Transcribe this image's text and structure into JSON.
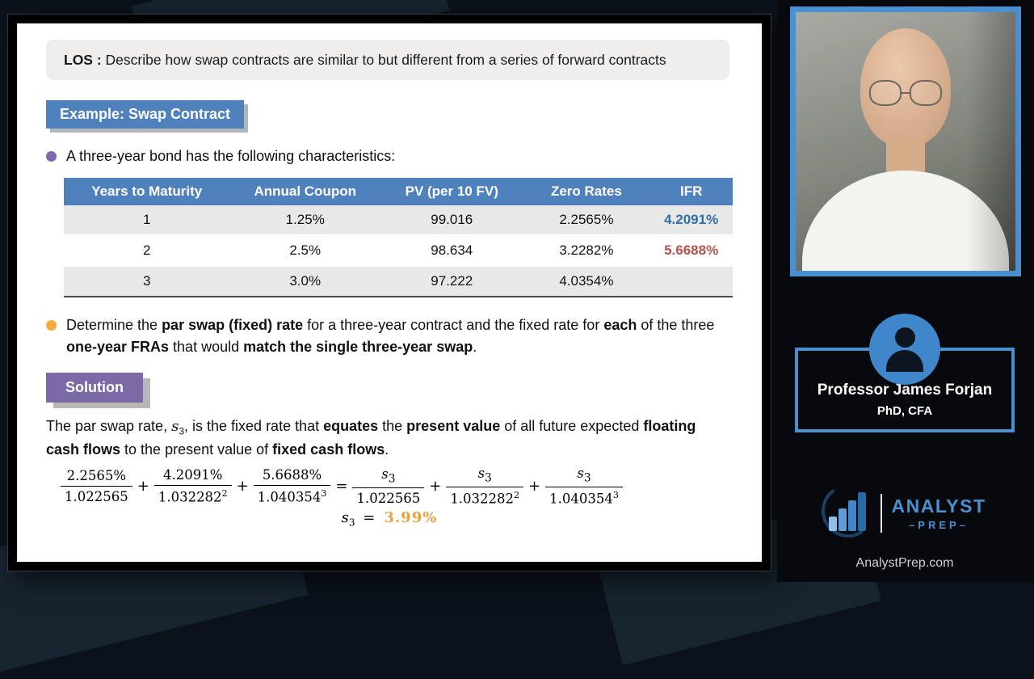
{
  "los": {
    "segments": [
      {
        "t": "LOS : ",
        "b": true
      },
      {
        "t": "Describe how swap contracts are similar to but different from a series of forward contracts"
      }
    ]
  },
  "example_badge": "Example: Swap Contract",
  "bullet1": "A three-year bond has the following characteristics:",
  "table": {
    "headers": [
      "Years to Maturity",
      "Annual Coupon",
      "PV (per 10 FV)",
      "Zero Rates",
      "IFR"
    ],
    "rows": [
      {
        "cells": [
          "1",
          "1.25%",
          "99.016",
          "2.2565%",
          "4.2091%"
        ],
        "ifr_class": "blue"
      },
      {
        "cells": [
          "2",
          "2.5%",
          "98.634",
          "3.2282%",
          "5.6688%"
        ],
        "ifr_class": "red"
      },
      {
        "cells": [
          "3",
          "3.0%",
          "97.222",
          "4.0354%",
          ""
        ],
        "ifr_class": ""
      }
    ]
  },
  "bullet2": {
    "segments": [
      {
        "t": "Determine the "
      },
      {
        "t": "par swap (fixed) rate",
        "b": true
      },
      {
        "t": " for a three-year contract and the fixed rate for "
      },
      {
        "t": "each",
        "b": true
      },
      {
        "t": " of the three "
      },
      {
        "t": "one-year FRAs",
        "b": true
      },
      {
        "t": " that would "
      },
      {
        "t": "match the single three-year swap",
        "b": true
      },
      {
        "t": "."
      }
    ]
  },
  "solution_badge": "Solution",
  "solution_text": {
    "segments": [
      {
        "t": "The par swap rate, "
      },
      {
        "t": "s",
        "i": true
      },
      {
        "t": "3",
        "sub": true
      },
      {
        "t": ", is the fixed rate that "
      },
      {
        "t": "equates",
        "b": true
      },
      {
        "t": " the "
      },
      {
        "t": "present value",
        "b": true
      },
      {
        "t": " of all future expected "
      },
      {
        "t": "floating cash flows",
        "b": true
      },
      {
        "t": " to the present value of "
      },
      {
        "t": "fixed cash flows",
        "b": true
      },
      {
        "t": "."
      }
    ]
  },
  "equation": {
    "lhs": [
      {
        "n": "2.2565%",
        "d": "1.022565",
        "e": ""
      },
      {
        "n": "4.2091%",
        "d": "1.032282",
        "e": "2"
      },
      {
        "n": "5.6688%",
        "d": "1.040354",
        "e": "3"
      }
    ],
    "rhs": [
      {
        "n": "s",
        "sub": "3",
        "var": true,
        "d": "1.022565",
        "e": ""
      },
      {
        "n": "s",
        "sub": "3",
        "var": true,
        "d": "1.032282",
        "e": "2"
      },
      {
        "n": "s",
        "sub": "3",
        "var": true,
        "d": "1.040354",
        "e": "3"
      }
    ],
    "result": {
      "var": "s",
      "sub": "3",
      "op": "=",
      "value": "3.99%"
    }
  },
  "presenter": {
    "name": "Professor James Forjan",
    "credentials": "PhD, CFA"
  },
  "brand": {
    "name_top": "ANALYST",
    "name_bottom": "–PREP–",
    "site": "AnalystPrep.com"
  },
  "colors": {
    "table_header_blue": "#4f81bd",
    "ifr_blue": "#2e6fad",
    "ifr_red": "#b5524b",
    "example_badge_blue": "#4f81bd",
    "solution_badge_purple": "#7c6aa6",
    "result_orange": "#e8a33d",
    "panel_border_blue": "#4a8fd0"
  }
}
